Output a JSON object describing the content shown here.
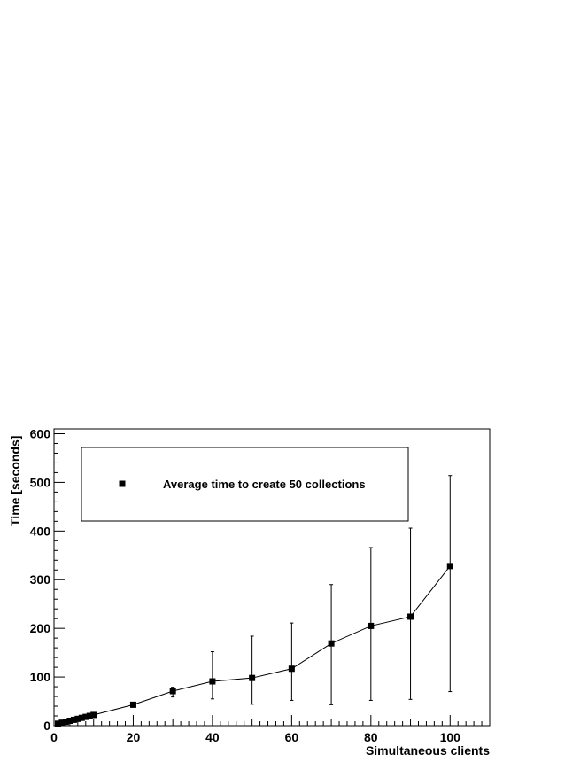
{
  "chart_data": {
    "type": "line",
    "title": "",
    "xlabel": "Simultaneous clients",
    "ylabel": "Time [seconds]",
    "xlim": [
      0,
      110
    ],
    "ylim": [
      0,
      610
    ],
    "x_ticks": [
      0,
      20,
      40,
      60,
      80,
      100
    ],
    "y_ticks": [
      0,
      100,
      200,
      300,
      400,
      500,
      600
    ],
    "grid": false,
    "legend_position": "top-left",
    "marker": "square",
    "series": [
      {
        "name": "Average time to create 50 collections",
        "color": "#000000",
        "x": [
          1,
          2,
          3,
          4,
          5,
          6,
          7,
          8,
          9,
          10,
          20,
          30,
          40,
          50,
          60,
          70,
          80,
          90,
          100
        ],
        "y": [
          4,
          6,
          8,
          10,
          12,
          14,
          16,
          18,
          20,
          22,
          43,
          71,
          91,
          98,
          117,
          169,
          205,
          224,
          328
        ],
        "error_low": [
          1,
          1,
          1,
          1,
          1,
          2,
          2,
          2,
          2,
          3,
          5,
          12,
          36,
          54,
          65,
          126,
          153,
          170,
          258
        ],
        "error_high": [
          1,
          1,
          1,
          1,
          1,
          2,
          2,
          2,
          2,
          3,
          5,
          8,
          61,
          86,
          94,
          121,
          161,
          182,
          186
        ]
      }
    ]
  }
}
